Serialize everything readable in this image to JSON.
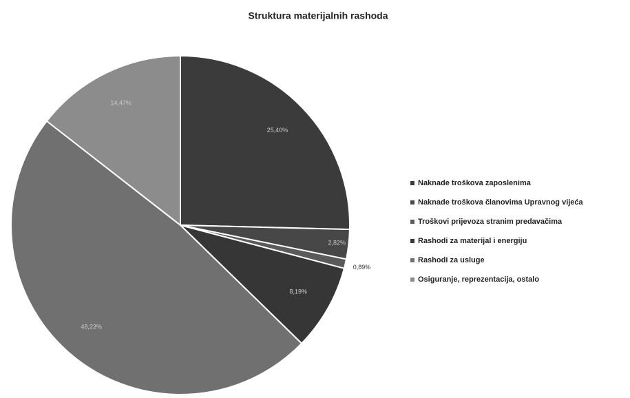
{
  "chart_data": {
    "type": "pie",
    "title": "Struktura materijalnih rashoda",
    "categories": [
      "Naknade troškova zaposlenima",
      "Naknade troškova članovima Upravnog vijeća",
      "Troškovi prijevoza stranim predavačima",
      "Rashodi za materijal i energiju",
      "Rashodi za usluge",
      "Osiguranje, reprezentacija, ostalo"
    ],
    "values": [
      25.4,
      2.82,
      0.89,
      8.19,
      48.23,
      14.47
    ],
    "value_labels": [
      "25,40%",
      "2,82%",
      "0,89%",
      "8,19%",
      "48,23%",
      "14,47%"
    ],
    "colors": [
      "#3b3b3b",
      "#474747",
      "#5a5a5a",
      "#363636",
      "#707070",
      "#8c8c8c"
    ],
    "legend": "right"
  }
}
